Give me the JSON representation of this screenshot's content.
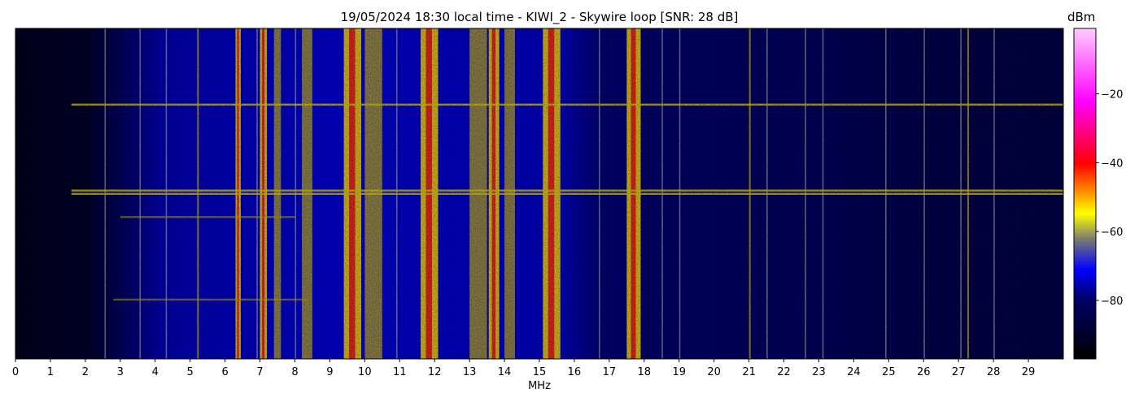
{
  "chart_data": {
    "type": "heatmap",
    "title": "19/05/2024 18:30 local time - KIWI_2 - Skywire loop [SNR: 28 dB]",
    "xlabel": "MHz",
    "ylabel": "",
    "x_ticks": [
      "0",
      "1",
      "2",
      "3",
      "4",
      "5",
      "6",
      "7",
      "8",
      "9",
      "10",
      "11",
      "12",
      "13",
      "14",
      "15",
      "16",
      "17",
      "18",
      "19",
      "20",
      "21",
      "22",
      "23",
      "24",
      "25",
      "26",
      "27",
      "28",
      "29"
    ],
    "xlim": [
      0,
      30
    ],
    "colorbar": {
      "label": "dBm",
      "ticks": [
        "−20",
        "−40",
        "−60",
        "−80"
      ],
      "tick_values": [
        -20,
        -40,
        -60,
        -80
      ],
      "range": [
        -97,
        -1
      ],
      "colors": [
        "#000000",
        "#0000ff",
        "#ffff00",
        "#ff0000",
        "#ff00ff",
        "#ffccff"
      ]
    },
    "features": {
      "strong_bands_mhz": [
        [
          6.3,
          6.45
        ],
        [
          7.0,
          7.2
        ],
        [
          9.4,
          9.9
        ],
        [
          11.6,
          12.1
        ],
        [
          13.55,
          13.85
        ],
        [
          15.1,
          15.6
        ],
        [
          17.5,
          17.9
        ]
      ],
      "moderate_bands_mhz": [
        [
          5.2,
          5.25
        ],
        [
          7.4,
          7.6
        ],
        [
          8.2,
          8.5
        ],
        [
          10.0,
          10.5
        ],
        [
          13.0,
          13.5
        ],
        [
          14.0,
          14.3
        ],
        [
          21.0,
          21.05
        ],
        [
          27.25,
          27.3
        ]
      ],
      "weak_lines_mhz": [
        2.55,
        3.55,
        4.3,
        6.9,
        8.0,
        10.9,
        16.7,
        18.5,
        19.0,
        21.5,
        22.6,
        23.1,
        24.9,
        26.0,
        27.05,
        28.0
      ],
      "horizontal_interference_fraction": [
        0.23,
        0.49,
        0.5,
        0.57,
        0.82
      ],
      "horizontal_interference_extent_mhz": [
        [
          1.6,
          30
        ],
        [
          1.6,
          30
        ],
        [
          1.6,
          30
        ],
        [
          3.0,
          8.0
        ],
        [
          2.8,
          8.4
        ]
      ]
    }
  }
}
